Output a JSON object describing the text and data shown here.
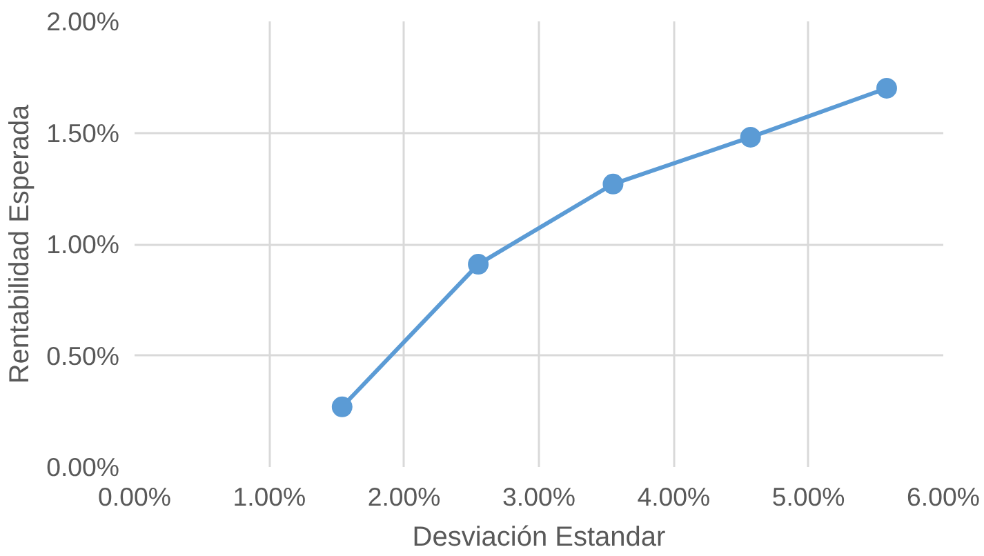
{
  "chart_data": {
    "type": "line",
    "xlabel": "Desviación Estandar",
    "ylabel": "Rentabilidad Esperada",
    "x": [
      1.54,
      2.55,
      3.55,
      4.57,
      5.58
    ],
    "series": [
      {
        "color": "#5b9bd5",
        "values": [
          0.27,
          0.91,
          1.27,
          1.48,
          1.7
        ]
      }
    ],
    "xlim": [
      0,
      6
    ],
    "ylim": [
      0,
      2
    ],
    "xticks": [
      {
        "value": 0,
        "label": "0.00%"
      },
      {
        "value": 1,
        "label": "1.00%"
      },
      {
        "value": 2,
        "label": "2.00%"
      },
      {
        "value": 3,
        "label": "3.00%"
      },
      {
        "value": 4,
        "label": "4.00%"
      },
      {
        "value": 5,
        "label": "5.00%"
      },
      {
        "value": 6,
        "label": "6.00%"
      }
    ],
    "yticks": [
      {
        "value": 0,
        "label": "0.00%"
      },
      {
        "value": 0.5,
        "label": "0.50%"
      },
      {
        "value": 1,
        "label": "1.00%"
      },
      {
        "value": 1.5,
        "label": "1.50%"
      },
      {
        "value": 2,
        "label": "2.00%"
      }
    ],
    "grid": true,
    "marker": "circle",
    "line_style": "solid"
  }
}
